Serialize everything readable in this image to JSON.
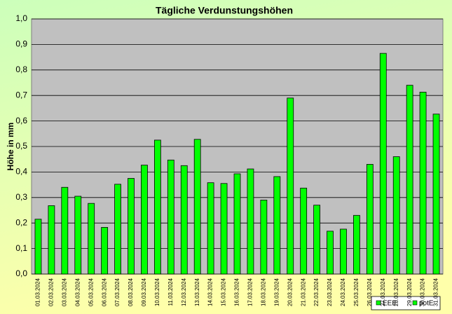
{
  "chart_data": {
    "type": "bar",
    "title": "Tägliche Verdunstungshöhen",
    "y_label": "Höhe in mm",
    "categories": [
      "01.03.2024",
      "02.03.2024",
      "03.03.2024",
      "04.03.2024",
      "05.03.2024",
      "06.03.2024",
      "07.03.2024",
      "08.03.2024",
      "09.03.2024",
      "10.03.2024",
      "11.03.2024",
      "12.03.2024",
      "13.03.2024",
      "14.03.2024",
      "15.03.2024",
      "16.03.2024",
      "17.03.2024",
      "18.03.2024",
      "19.03.2024",
      "20.03.2024",
      "21.03.2024",
      "22.03.2024",
      "23.03.2024",
      "24.03.2024",
      "25.03.2024",
      "26.03.2024",
      "27.03.2024",
      "28.03.2024",
      "29.03.2024",
      "30.03.2024",
      "31.03.2024"
    ],
    "series": [
      {
        "name": "EEE",
        "color": "#00ff00",
        "values": [
          null,
          null,
          null,
          null,
          null,
          null,
          null,
          null,
          null,
          null,
          null,
          null,
          null,
          null,
          null,
          null,
          null,
          null,
          null,
          null,
          null,
          null,
          null,
          null,
          null,
          null,
          null,
          null,
          null,
          null,
          null
        ]
      },
      {
        "name": "potE",
        "color": "#00ff00",
        "values": [
          0.215,
          0.268,
          0.34,
          0.305,
          0.277,
          0.183,
          0.352,
          0.375,
          0.427,
          0.525,
          0.447,
          0.425,
          0.528,
          0.358,
          0.355,
          0.393,
          0.412,
          0.29,
          0.382,
          0.69,
          0.337,
          0.27,
          0.168,
          0.176,
          0.23,
          0.43,
          0.865,
          0.46,
          0.74,
          0.713,
          0.627
        ]
      }
    ],
    "ylim": [
      0,
      1
    ],
    "yticks": [
      {
        "value": 0,
        "label": "0,0"
      },
      {
        "value": 0.1,
        "label": "0,1"
      },
      {
        "value": 0.2,
        "label": "0,2"
      },
      {
        "value": 0.3,
        "label": "0,3"
      },
      {
        "value": 0.4,
        "label": "0,4"
      },
      {
        "value": 0.5,
        "label": "0,5"
      },
      {
        "value": 0.6,
        "label": "0,6"
      },
      {
        "value": 0.7,
        "label": "0,7"
      },
      {
        "value": 0.8,
        "label": "0,8"
      },
      {
        "value": 0.9,
        "label": "0,9"
      },
      {
        "value": 1,
        "label": "1,0"
      }
    ],
    "grid": true
  }
}
